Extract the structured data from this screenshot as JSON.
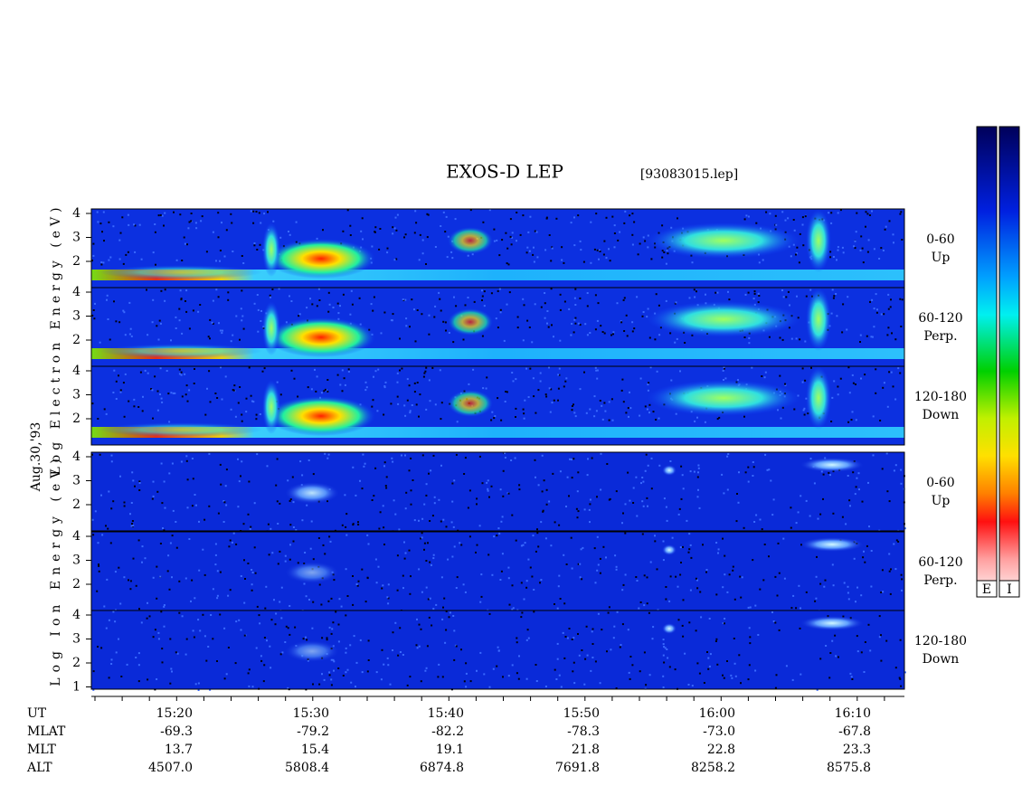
{
  "title": "EXOS-D LEP",
  "file": "[93083015.lep]",
  "date_label": "Aug.30,'93",
  "groups": [
    {
      "label": "Log Electron Energy (eV)",
      "panels": [
        {
          "pitch": "0-60",
          "direction": "Up",
          "yticks": [
            2,
            3,
            4
          ]
        },
        {
          "pitch": "60-120",
          "direction": "Perp.",
          "yticks": [
            2,
            3,
            4
          ]
        },
        {
          "pitch": "120-180",
          "direction": "Down",
          "yticks": [
            2,
            3,
            4
          ]
        }
      ]
    },
    {
      "label": "Log Ion Energy (eV)",
      "panels": [
        {
          "pitch": "0-60",
          "direction": "Up",
          "yticks": [
            2,
            3,
            4
          ]
        },
        {
          "pitch": "60-120",
          "direction": "Perp.",
          "yticks": [
            2,
            3,
            4
          ]
        },
        {
          "pitch": "120-180",
          "direction": "Down",
          "yticks": [
            1,
            2,
            3,
            4
          ]
        }
      ]
    }
  ],
  "orbit": [
    {
      "label": "UT",
      "values": [
        "15:20",
        "15:30",
        "15:40",
        "15:50",
        "16:00",
        "16:10"
      ]
    },
    {
      "label": "MLAT",
      "values": [
        "-69.3",
        "-79.2",
        "-82.2",
        "-78.3",
        "-73.0",
        "-67.8"
      ]
    },
    {
      "label": "MLT",
      "values": [
        "13.7",
        "15.4",
        "19.1",
        "21.8",
        "22.8",
        "23.3"
      ]
    },
    {
      "label": "ALT",
      "values": [
        "4507.0",
        "5808.4",
        "6874.8",
        "7691.8",
        "8258.2",
        "8575.8"
      ]
    }
  ],
  "colorbars": [
    "E",
    "I"
  ]
}
